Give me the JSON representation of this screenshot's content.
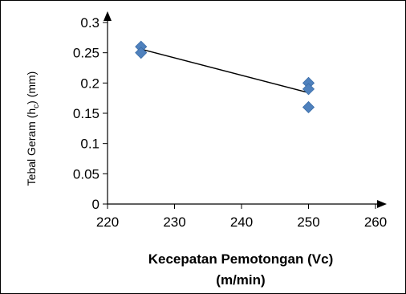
{
  "chart_data": {
    "type": "scatter",
    "xlabel_lines": [
      "Kecepatan Pemotongan (Vc)",
      "(m/min)"
    ],
    "ylabel_main": "Tebal Geram  (h",
    "ylabel_sub": "c",
    "ylabel_tail": ") (mm)",
    "xlim": [
      220,
      260
    ],
    "ylim": [
      0,
      0.3
    ],
    "x_ticks": [
      220,
      230,
      240,
      250,
      260
    ],
    "y_ticks": [
      0,
      0.05,
      0.1,
      0.15,
      0.2,
      0.25,
      0.3
    ],
    "x_tick_labels": [
      "220",
      "230",
      "240",
      "250",
      "260"
    ],
    "y_tick_labels": [
      "0",
      "0.05",
      "0.1",
      "0.15",
      "0.2",
      "0.25",
      "0.3"
    ],
    "points": [
      {
        "x": 225,
        "y": 0.26
      },
      {
        "x": 225,
        "y": 0.25
      },
      {
        "x": 250,
        "y": 0.2
      },
      {
        "x": 250,
        "y": 0.19
      },
      {
        "x": 250,
        "y": 0.16
      }
    ],
    "trendline": [
      {
        "x": 225,
        "y": 0.256
      },
      {
        "x": 250,
        "y": 0.184
      }
    ],
    "marker_color": "#4F81BD",
    "grid": false
  }
}
